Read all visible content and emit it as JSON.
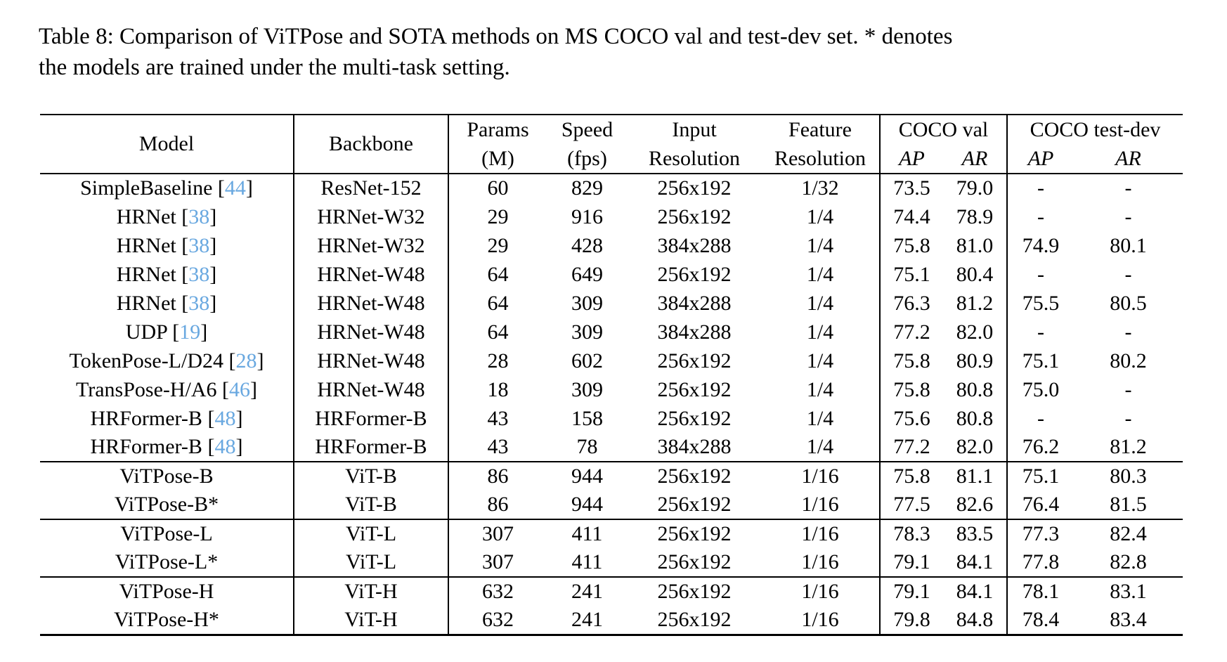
{
  "caption": {
    "lines": [
      "Table 8: Comparison of ViTPose and SOTA methods on MS COCO val and test-dev set. * denotes",
      "the models are trained under the multi-task setting."
    ]
  },
  "colors": {
    "citation_link": "#69A8E0",
    "text": "#000000",
    "background": "#FFFFFF"
  },
  "table": {
    "headers": {
      "model": "Model",
      "backbone": "Backbone",
      "params_l1": "Params",
      "params_l2": "(M)",
      "speed_l1": "Speed",
      "speed_l2": "(fps)",
      "input_l1": "Input",
      "input_l2": "Resolution",
      "feature_l1": "Feature",
      "feature_l2": "Resolution",
      "coco_val": "COCO val",
      "coco_test_dev": "COCO test-dev",
      "ap": "AP",
      "ar": "AR"
    },
    "rows": [
      {
        "model": "SimpleBaseline",
        "cite": "44",
        "backbone": "ResNet-152",
        "params": "60",
        "speed": "829",
        "input": "256x192",
        "feature": "1/32",
        "val_ap": "73.5",
        "val_ar": "79.0",
        "dev_ap": "-",
        "dev_ar": "-",
        "sep": false
      },
      {
        "model": "HRNet",
        "cite": "38",
        "backbone": "HRNet-W32",
        "params": "29",
        "speed": "916",
        "input": "256x192",
        "feature": "1/4",
        "val_ap": "74.4",
        "val_ar": "78.9",
        "dev_ap": "-",
        "dev_ar": "-",
        "sep": false
      },
      {
        "model": "HRNet",
        "cite": "38",
        "backbone": "HRNet-W32",
        "params": "29",
        "speed": "428",
        "input": "384x288",
        "feature": "1/4",
        "val_ap": "75.8",
        "val_ar": "81.0",
        "dev_ap": "74.9",
        "dev_ar": "80.1",
        "sep": false
      },
      {
        "model": "HRNet",
        "cite": "38",
        "backbone": "HRNet-W48",
        "params": "64",
        "speed": "649",
        "input": "256x192",
        "feature": "1/4",
        "val_ap": "75.1",
        "val_ar": "80.4",
        "dev_ap": "-",
        "dev_ar": "-",
        "sep": false
      },
      {
        "model": "HRNet",
        "cite": "38",
        "backbone": "HRNet-W48",
        "params": "64",
        "speed": "309",
        "input": "384x288",
        "feature": "1/4",
        "val_ap": "76.3",
        "val_ar": "81.2",
        "dev_ap": "75.5",
        "dev_ar": "80.5",
        "sep": false
      },
      {
        "model": "UDP",
        "cite": "19",
        "backbone": "HRNet-W48",
        "params": "64",
        "speed": "309",
        "input": "384x288",
        "feature": "1/4",
        "val_ap": "77.2",
        "val_ar": "82.0",
        "dev_ap": "-",
        "dev_ar": "-",
        "sep": false
      },
      {
        "model": "TokenPose-L/D24",
        "cite": "28",
        "backbone": "HRNet-W48",
        "params": "28",
        "speed": "602",
        "input": "256x192",
        "feature": "1/4",
        "val_ap": "75.8",
        "val_ar": "80.9",
        "dev_ap": "75.1",
        "dev_ar": "80.2",
        "sep": false
      },
      {
        "model": "TransPose-H/A6",
        "cite": "46",
        "backbone": "HRNet-W48",
        "params": "18",
        "speed": "309",
        "input": "256x192",
        "feature": "1/4",
        "val_ap": "75.8",
        "val_ar": "80.8",
        "dev_ap": "75.0",
        "dev_ar": "-",
        "sep": false
      },
      {
        "model": "HRFormer-B",
        "cite": "48",
        "backbone": "HRFormer-B",
        "params": "43",
        "speed": "158",
        "input": "256x192",
        "feature": "1/4",
        "val_ap": "75.6",
        "val_ar": "80.8",
        "dev_ap": "-",
        "dev_ar": "-",
        "sep": false
      },
      {
        "model": "HRFormer-B",
        "cite": "48",
        "backbone": "HRFormer-B",
        "params": "43",
        "speed": "78",
        "input": "384x288",
        "feature": "1/4",
        "val_ap": "77.2",
        "val_ar": "82.0",
        "dev_ap": "76.2",
        "dev_ar": "81.2",
        "sep": false
      },
      {
        "model": "ViTPose-B",
        "cite": null,
        "backbone": "ViT-B",
        "params": "86",
        "speed": "944",
        "input": "256x192",
        "feature": "1/16",
        "val_ap": "75.8",
        "val_ar": "81.1",
        "dev_ap": "75.1",
        "dev_ar": "80.3",
        "sep": true
      },
      {
        "model": "ViTPose-B*",
        "cite": null,
        "backbone": "ViT-B",
        "params": "86",
        "speed": "944",
        "input": "256x192",
        "feature": "1/16",
        "val_ap": "77.5",
        "val_ar": "82.6",
        "dev_ap": "76.4",
        "dev_ar": "81.5",
        "sep": false
      },
      {
        "model": "ViTPose-L",
        "cite": null,
        "backbone": "ViT-L",
        "params": "307",
        "speed": "411",
        "input": "256x192",
        "feature": "1/16",
        "val_ap": "78.3",
        "val_ar": "83.5",
        "dev_ap": "77.3",
        "dev_ar": "82.4",
        "sep": true
      },
      {
        "model": "ViTPose-L*",
        "cite": null,
        "backbone": "ViT-L",
        "params": "307",
        "speed": "411",
        "input": "256x192",
        "feature": "1/16",
        "val_ap": "79.1",
        "val_ar": "84.1",
        "dev_ap": "77.8",
        "dev_ar": "82.8",
        "sep": false
      },
      {
        "model": "ViTPose-H",
        "cite": null,
        "backbone": "ViT-H",
        "params": "632",
        "speed": "241",
        "input": "256x192",
        "feature": "1/16",
        "val_ap": "79.1",
        "val_ar": "84.1",
        "dev_ap": "78.1",
        "dev_ar": "83.1",
        "sep": true
      },
      {
        "model": "ViTPose-H*",
        "cite": null,
        "backbone": "ViT-H",
        "params": "632",
        "speed": "241",
        "input": "256x192",
        "feature": "1/16",
        "val_ap": "79.8",
        "val_ar": "84.8",
        "dev_ap": "78.4",
        "dev_ar": "83.4",
        "sep": false
      }
    ]
  }
}
